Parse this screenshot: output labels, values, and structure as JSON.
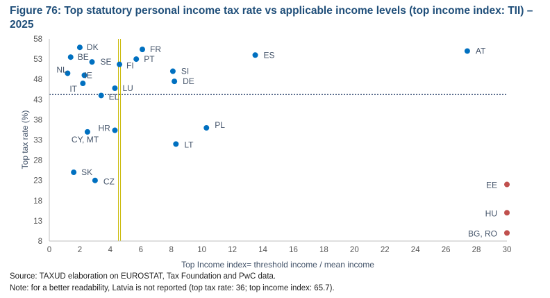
{
  "title": "Figure 76: Top statutory personal income tax rate vs applicable income levels (top income index: TII) – 2025",
  "source": "Source: TAXUD elaboration on EUROSTAT, Tax Foundation and PwC data.",
  "note": "Note: for a better readability, Latvia is not reported (top tax rate: 36; top income index: 65.7).",
  "colors": {
    "blue": "#0070c0",
    "red": "#c0504d",
    "vline": "#c9b800",
    "hline": "#1f3864",
    "axis_text": "#555555",
    "label_text": "#44546a"
  },
  "chart_data": {
    "type": "scatter",
    "xlabel": "Top Income index= threshold income / mean income",
    "ylabel": "Top tax rate (%)",
    "xlim": [
      0,
      30
    ],
    "ylim": [
      8,
      58
    ],
    "xticks": [
      0,
      2,
      4,
      6,
      8,
      10,
      12,
      14,
      16,
      18,
      20,
      22,
      24,
      26,
      28,
      30
    ],
    "yticks": [
      8,
      13,
      18,
      23,
      28,
      33,
      38,
      43,
      48,
      53,
      58
    ],
    "reference_lines": {
      "x": 4.6,
      "y": 44.3
    },
    "points": [
      {
        "label": "DK",
        "x": 2.0,
        "y": 55.9,
        "color": "blue"
      },
      {
        "label": "FR",
        "x": 6.1,
        "y": 55.4,
        "color": "blue"
      },
      {
        "label": "BE",
        "x": 1.4,
        "y": 53.5,
        "color": "blue"
      },
      {
        "label": "SE",
        "x": 2.8,
        "y": 52.3,
        "color": "blue"
      },
      {
        "label": "PT",
        "x": 5.7,
        "y": 53.0,
        "color": "blue"
      },
      {
        "label": "FI",
        "x": 4.6,
        "y": 51.7,
        "color": "blue"
      },
      {
        "label": "ES",
        "x": 13.5,
        "y": 54.0,
        "color": "blue"
      },
      {
        "label": "AT",
        "x": 27.4,
        "y": 55.0,
        "color": "blue"
      },
      {
        "label": "NL",
        "x": 1.2,
        "y": 49.5,
        "color": "blue"
      },
      {
        "label": "IE",
        "x": 2.3,
        "y": 49.0,
        "color": "blue"
      },
      {
        "label": "IT",
        "x": 2.2,
        "y": 47.0,
        "color": "blue"
      },
      {
        "label": "SI",
        "x": 8.1,
        "y": 50.0,
        "color": "blue"
      },
      {
        "label": "DE",
        "x": 8.2,
        "y": 47.5,
        "color": "blue"
      },
      {
        "label": "LU",
        "x": 4.3,
        "y": 45.8,
        "color": "blue"
      },
      {
        "label": "EL",
        "x": 3.4,
        "y": 44.0,
        "color": "blue"
      },
      {
        "label": "PL",
        "x": 10.3,
        "y": 36.0,
        "color": "blue"
      },
      {
        "label": "HR",
        "x": 4.3,
        "y": 35.4,
        "color": "blue"
      },
      {
        "label": "CY, MT",
        "x": 2.5,
        "y": 35.0,
        "color": "blue"
      },
      {
        "label": "LT",
        "x": 8.3,
        "y": 32.0,
        "color": "blue"
      },
      {
        "label": "SK",
        "x": 1.6,
        "y": 25.0,
        "color": "blue"
      },
      {
        "label": "CZ",
        "x": 3.0,
        "y": 23.0,
        "color": "blue"
      },
      {
        "label": "EE",
        "x": 30.0,
        "y": 22.0,
        "color": "red"
      },
      {
        "label": "HU",
        "x": 30.0,
        "y": 15.0,
        "color": "red"
      },
      {
        "label": "BG, RO",
        "x": 30.0,
        "y": 10.0,
        "color": "red"
      }
    ]
  }
}
